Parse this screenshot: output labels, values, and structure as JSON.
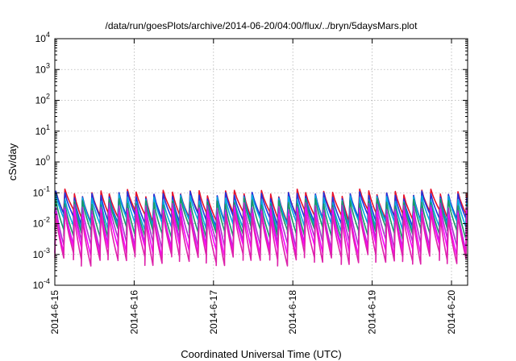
{
  "chart_data": {
    "type": "line",
    "title": "/data/run/goesPlots/archive/2014-06-20/04:00/flux/../bryn/5daysMars.plot",
    "xlabel": "Coordinated Universal Time (UTC)",
    "ylabel": "cSv/day",
    "yscale": "log",
    "ylim": [
      0.0001,
      10000
    ],
    "xlim": [
      "2014-06-15 00:00",
      "2014-06-20 04:00"
    ],
    "x_ticks": [
      "2014-6-15",
      "2014-6-16",
      "2014-6-17",
      "2014-6-18",
      "2014-6-19",
      "2014-6-20"
    ],
    "y_ticks": [
      {
        "base": "10",
        "exp": "-4",
        "value": 0.0001
      },
      {
        "base": "10",
        "exp": "-3",
        "value": 0.001
      },
      {
        "base": "10",
        "exp": "-2",
        "value": 0.01
      },
      {
        "base": "10",
        "exp": "-1",
        "value": 0.1
      },
      {
        "base": "10",
        "exp": "0",
        "value": 1
      },
      {
        "base": "10",
        "exp": "1",
        "value": 10
      },
      {
        "base": "10",
        "exp": "2",
        "value": 100
      },
      {
        "base": "10",
        "exp": "3",
        "value": 1000
      },
      {
        "base": "10",
        "exp": "4",
        "value": 10000
      }
    ],
    "grid": true,
    "legend": "none",
    "pattern": {
      "description": "sawtooth, roughly 9 cycles per day; each cycle jumps up then decays",
      "period_hours": 2.7
    },
    "series": [
      {
        "color": "#e8102a",
        "peak": 0.1,
        "trough": 0.018
      },
      {
        "color": "#2233dd",
        "peak": 0.085,
        "trough": 0.013
      },
      {
        "color": "#00aadd",
        "peak": 0.065,
        "trough": 0.009
      },
      {
        "color": "#199966",
        "peak": 0.05,
        "trough": 0.005
      },
      {
        "color": "#aa33cc",
        "peak": 0.035,
        "trough": 0.0022
      },
      {
        "color": "#ff00ff",
        "peak": 0.025,
        "trough": 0.0013
      },
      {
        "color": "#dd22aa",
        "peak": 0.018,
        "trough": 0.0007
      }
    ]
  }
}
